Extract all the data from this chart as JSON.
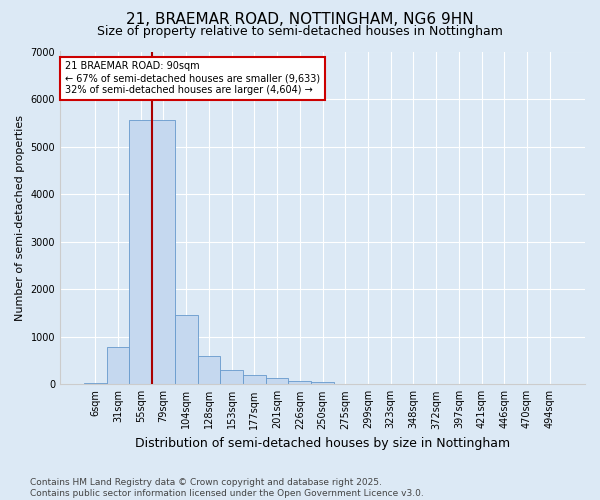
{
  "title": "21, BRAEMAR ROAD, NOTTINGHAM, NG6 9HN",
  "subtitle": "Size of property relative to semi-detached houses in Nottingham",
  "xlabel": "Distribution of semi-detached houses by size in Nottingham",
  "ylabel": "Number of semi-detached properties",
  "categories": [
    "6sqm",
    "31sqm",
    "55sqm",
    "79sqm",
    "104sqm",
    "128sqm",
    "153sqm",
    "177sqm",
    "201sqm",
    "226sqm",
    "250sqm",
    "275sqm",
    "299sqm",
    "323sqm",
    "348sqm",
    "372sqm",
    "397sqm",
    "421sqm",
    "446sqm",
    "470sqm",
    "494sqm"
  ],
  "values": [
    30,
    790,
    5550,
    5550,
    1450,
    600,
    310,
    200,
    130,
    70,
    50,
    10,
    0,
    0,
    0,
    0,
    0,
    0,
    0,
    0,
    0
  ],
  "bar_color": "#c5d8ef",
  "bar_edge_color": "#6699cc",
  "vline_pos": 2.5,
  "vline_color": "#aa0000",
  "annotation_text": "21 BRAEMAR ROAD: 90sqm\n← 67% of semi-detached houses are smaller (9,633)\n32% of semi-detached houses are larger (4,604) →",
  "annotation_box_facecolor": "#ffffff",
  "annotation_box_edgecolor": "#cc0000",
  "background_color": "#dce9f5",
  "plot_bg_color": "#dce9f5",
  "ylim": [
    0,
    7000
  ],
  "yticks": [
    0,
    1000,
    2000,
    3000,
    4000,
    5000,
    6000,
    7000
  ],
  "footer": "Contains HM Land Registry data © Crown copyright and database right 2025.\nContains public sector information licensed under the Open Government Licence v3.0.",
  "title_fontsize": 11,
  "subtitle_fontsize": 9,
  "xlabel_fontsize": 9,
  "ylabel_fontsize": 8,
  "tick_fontsize": 7,
  "annot_fontsize": 7,
  "footer_fontsize": 6.5
}
